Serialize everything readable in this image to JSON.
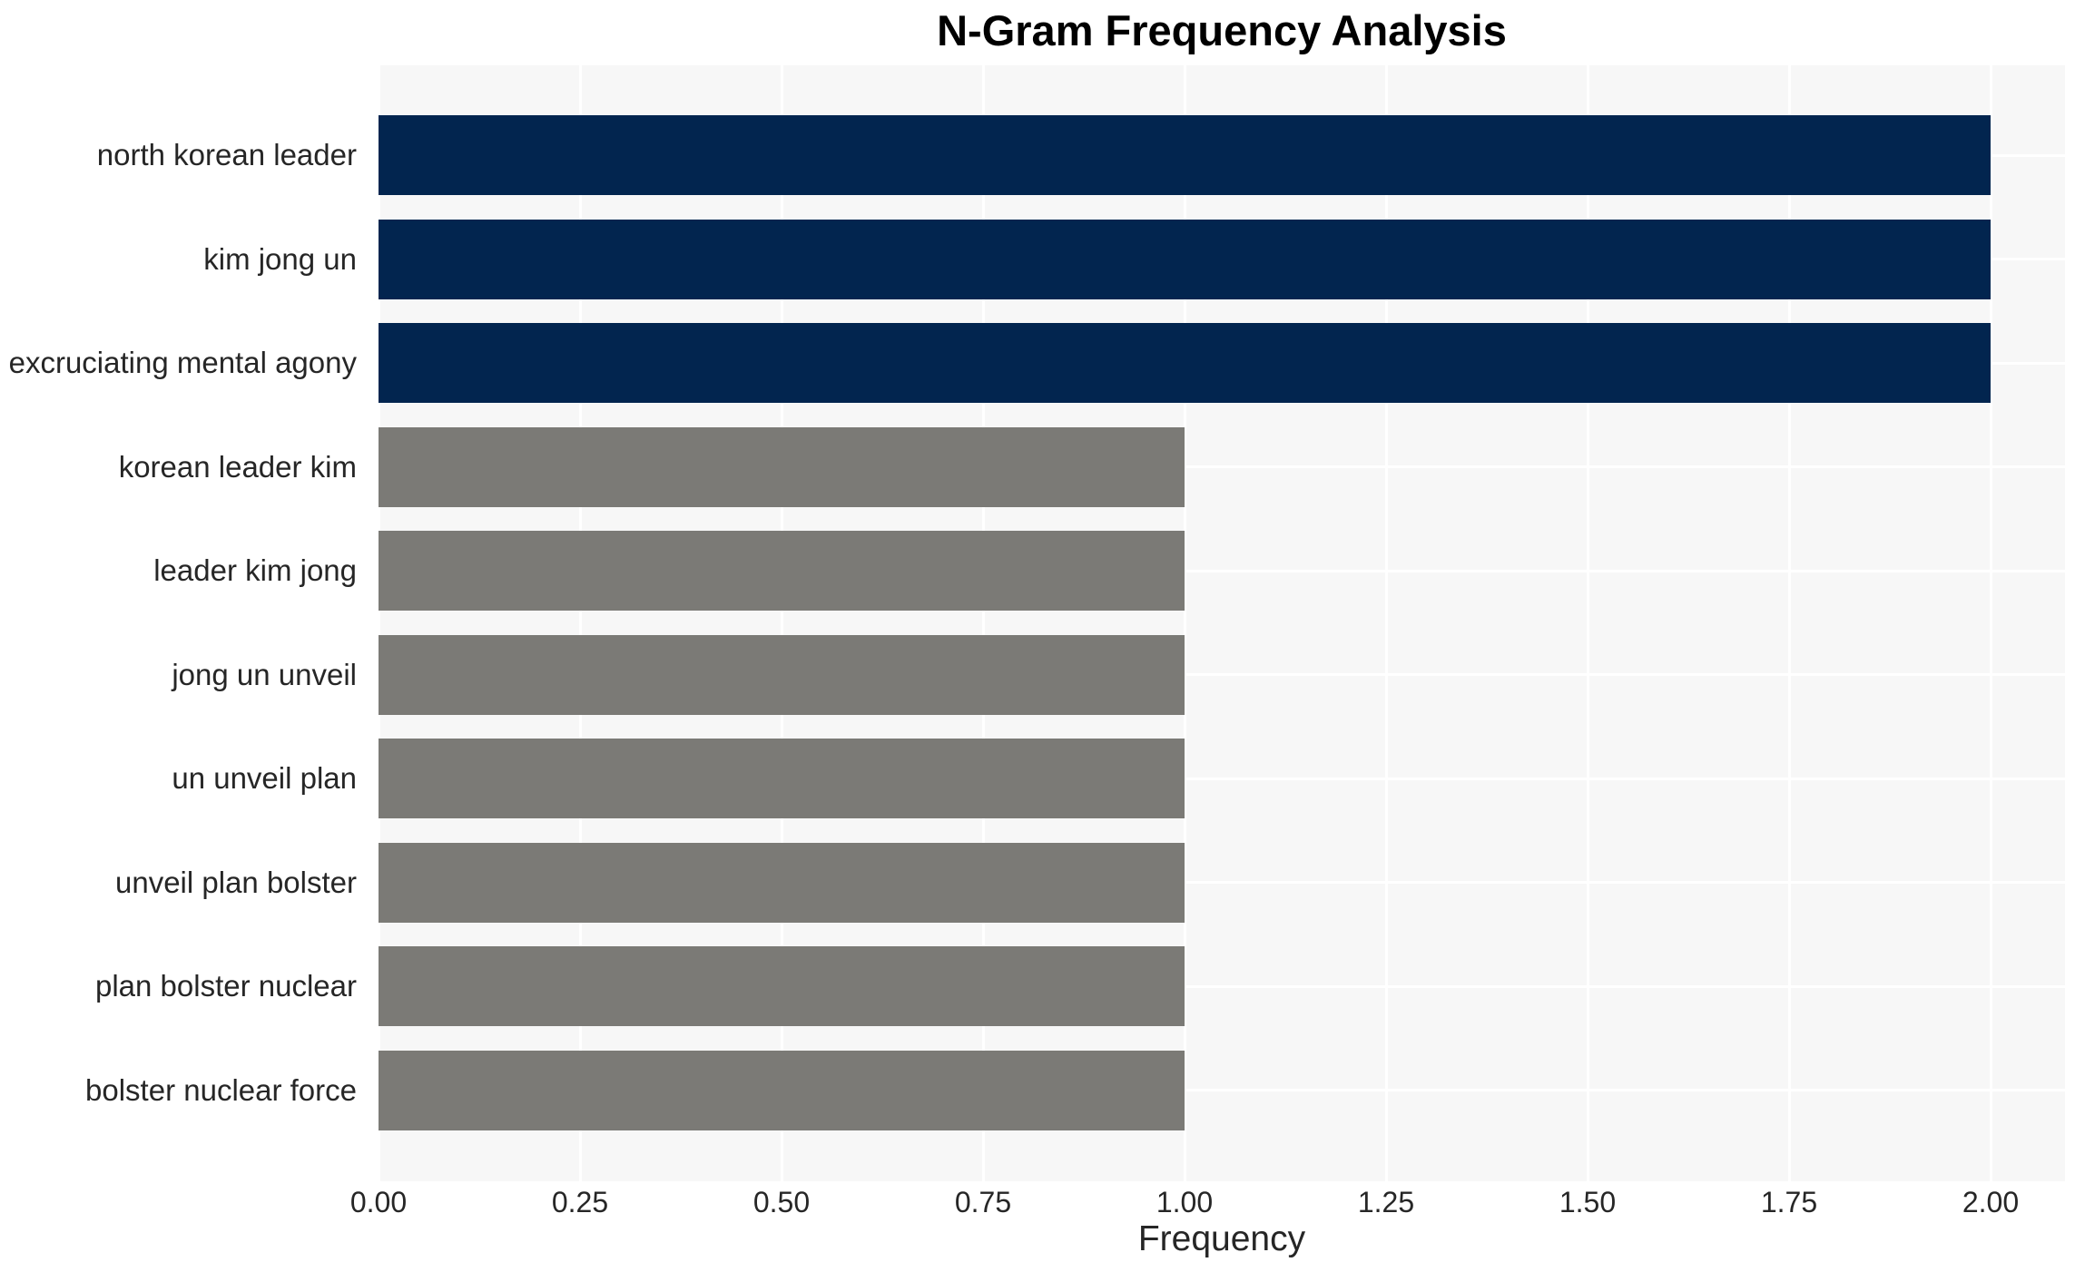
{
  "chart_data": {
    "type": "bar",
    "orientation": "horizontal",
    "title": "N-Gram Frequency Analysis",
    "xlabel": "Frequency",
    "ylabel": "",
    "categories": [
      "north korean leader",
      "kim jong un",
      "excruciating mental agony",
      "korean leader kim",
      "leader kim jong",
      "jong un unveil",
      "un unveil plan",
      "unveil plan bolster",
      "plan bolster nuclear",
      "bolster nuclear force"
    ],
    "values": [
      2,
      2,
      2,
      1,
      1,
      1,
      1,
      1,
      1,
      1
    ],
    "bar_colors": [
      "#02254f",
      "#02254f",
      "#02254f",
      "#7b7a76",
      "#7b7a76",
      "#7b7a76",
      "#7b7a76",
      "#7b7a76",
      "#7b7a76",
      "#7b7a76"
    ],
    "xticks": [
      0,
      0.25,
      0.5,
      0.75,
      1,
      1.25,
      1.5,
      1.75,
      2
    ],
    "xtick_labels": [
      "0.00",
      "0.25",
      "0.50",
      "0.75",
      "1.00",
      "1.25",
      "1.50",
      "1.75",
      "2.00"
    ],
    "xlim": [
      0,
      2.09
    ],
    "grid": true,
    "legend": false,
    "colors": {
      "highlight_bar": "#02254f",
      "default_bar": "#7b7a76",
      "panel_background": "#f7f7f7",
      "grid_line": "#ffffff",
      "tick_text": "#262626",
      "title_text": "#000000"
    }
  }
}
